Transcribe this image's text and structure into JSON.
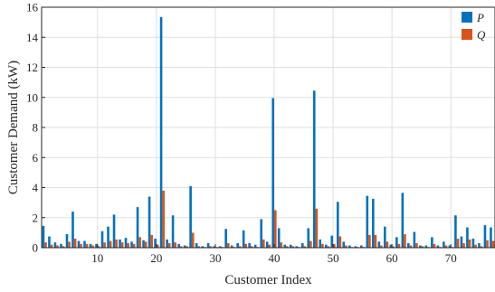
{
  "chart_data": {
    "type": "bar",
    "xlabel": "Customer Index",
    "ylabel": "Customer Demand (kW)",
    "xlim": [
      0.5,
      77.5
    ],
    "ylim": [
      0,
      16
    ],
    "xticks": [
      10,
      20,
      30,
      40,
      50,
      60,
      70
    ],
    "yticks": [
      0,
      2,
      4,
      6,
      8,
      10,
      12,
      14,
      16
    ],
    "grid": true,
    "legend_position": "top-right",
    "x": [
      1,
      2,
      3,
      4,
      5,
      6,
      7,
      8,
      9,
      10,
      11,
      12,
      13,
      14,
      15,
      16,
      17,
      18,
      19,
      20,
      21,
      22,
      23,
      24,
      25,
      26,
      27,
      28,
      29,
      30,
      31,
      32,
      33,
      34,
      35,
      36,
      37,
      38,
      39,
      40,
      41,
      42,
      43,
      44,
      45,
      46,
      47,
      48,
      49,
      50,
      51,
      52,
      53,
      54,
      55,
      56,
      57,
      58,
      59,
      60,
      61,
      62,
      63,
      64,
      65,
      66,
      67,
      68,
      69,
      70,
      71,
      72,
      73,
      74,
      75,
      76,
      77
    ],
    "series": [
      {
        "name": "P",
        "color": "#0072BD",
        "values": [
          1.45,
          0.75,
          0.35,
          0.25,
          0.9,
          2.4,
          0.45,
          0.45,
          0.25,
          0.25,
          1.1,
          1.4,
          2.2,
          0.55,
          0.65,
          0.4,
          2.7,
          0.5,
          3.4,
          0.6,
          15.35,
          0.55,
          2.15,
          0.25,
          0.15,
          4.1,
          0.3,
          0.1,
          0.3,
          0.1,
          0.1,
          1.25,
          0.15,
          0.3,
          1.15,
          0.3,
          0.2,
          1.9,
          0.4,
          9.95,
          1.3,
          0.2,
          0.2,
          0.1,
          0.3,
          1.3,
          10.45,
          0.55,
          0.2,
          0.8,
          3.05,
          0.4,
          0.15,
          0.1,
          0.15,
          3.45,
          3.25,
          0.4,
          1.4,
          0.2,
          0.7,
          3.65,
          0.3,
          1.05,
          0.15,
          0.15,
          0.7,
          0.15,
          0.4,
          0.15,
          2.15,
          0.75,
          1.35,
          0.6,
          0.3,
          1.5,
          1.35
        ]
      },
      {
        "name": "Q",
        "color": "#D95319",
        "values": [
          0.35,
          0.2,
          0.15,
          0.1,
          0.4,
          0.6,
          0.25,
          0.25,
          0.15,
          0.1,
          0.35,
          0.45,
          0.55,
          0.35,
          0.3,
          0.25,
          0.7,
          0.4,
          0.85,
          0.2,
          3.8,
          0.3,
          0.35,
          0.1,
          0.1,
          1.0,
          0.1,
          0.05,
          0.1,
          0.05,
          0.05,
          0.3,
          0.05,
          0.1,
          0.25,
          0.1,
          0.05,
          0.55,
          0.2,
          2.5,
          0.35,
          0.1,
          0.1,
          0.05,
          0.1,
          0.45,
          2.6,
          0.25,
          0.1,
          0.25,
          0.75,
          0.15,
          0.05,
          0.05,
          0.05,
          0.85,
          0.85,
          0.15,
          0.4,
          0.1,
          0.25,
          0.9,
          0.15,
          0.3,
          0.1,
          0.05,
          0.25,
          0.05,
          0.15,
          0.05,
          0.6,
          0.3,
          0.55,
          0.2,
          0.1,
          0.5,
          0.45
        ]
      }
    ]
  }
}
